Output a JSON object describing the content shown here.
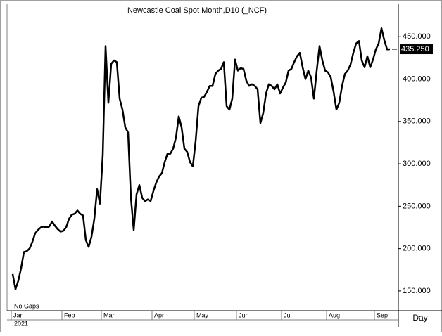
{
  "chart_data": {
    "type": "line",
    "title": "Newcastle Coal Spot Month,D10 (_NCF)",
    "categories": [
      "Jan",
      null,
      null,
      null,
      null,
      null,
      null,
      null,
      null,
      null,
      null,
      null,
      null,
      null,
      null,
      null,
      null,
      null,
      "Feb",
      null,
      null,
      null,
      null,
      null,
      null,
      null,
      null,
      null,
      null,
      null,
      null,
      null,
      "Mar",
      null,
      null,
      null,
      null,
      null,
      null,
      null,
      null,
      null,
      null,
      null,
      null,
      null,
      null,
      null,
      null,
      null,
      "Apr",
      null,
      null,
      null,
      null,
      null,
      null,
      null,
      null,
      null,
      null,
      null,
      null,
      null,
      null,
      "May",
      null,
      null,
      null,
      null,
      null,
      null,
      null,
      null,
      null,
      null,
      null,
      null,
      null,
      null,
      "Jun",
      null,
      null,
      null,
      null,
      null,
      null,
      null,
      null,
      null,
      null,
      null,
      null,
      null,
      null,
      null,
      "Jul",
      null,
      null,
      null,
      null,
      null,
      null,
      null,
      null,
      null,
      null,
      null,
      null,
      null,
      null,
      null,
      "Aug",
      null,
      null,
      null,
      null,
      null,
      null,
      null,
      null,
      null,
      null,
      null,
      null,
      null,
      null,
      null,
      null,
      "Sep",
      null,
      null,
      null,
      null,
      null
    ],
    "values": [
      170,
      152,
      162,
      177,
      196,
      197,
      200,
      208,
      218,
      222,
      225,
      226,
      225,
      226,
      232,
      227,
      223,
      220,
      221,
      225,
      235,
      240,
      241,
      245,
      241,
      239,
      210,
      202,
      214,
      235,
      270,
      253,
      310,
      439,
      372,
      418,
      422,
      420,
      377,
      364,
      343,
      337,
      260,
      222,
      264,
      275,
      260,
      256,
      258,
      256,
      268,
      278,
      285,
      289,
      302,
      312,
      312,
      318,
      331,
      356,
      343,
      318,
      314,
      302,
      297,
      327,
      368,
      378,
      379,
      385,
      392,
      392,
      406,
      410,
      412,
      420,
      368,
      364,
      377,
      423,
      410,
      413,
      412,
      398,
      392,
      394,
      392,
      388,
      348,
      360,
      383,
      394,
      392,
      388,
      394,
      383,
      390,
      396,
      410,
      412,
      420,
      427,
      431,
      414,
      400,
      410,
      402,
      377,
      410,
      439,
      422,
      410,
      408,
      402,
      385,
      364,
      372,
      392,
      406,
      410,
      417,
      431,
      442,
      445,
      422,
      414,
      427,
      414,
      423,
      435,
      442,
      460,
      446,
      435,
      435.25
    ],
    "color": "#000000",
    "ylim": [
      126.7,
      489.2
    ],
    "yticks": [
      {
        "value": 150,
        "label": "150.000"
      },
      {
        "value": 200,
        "label": "200.000"
      },
      {
        "value": 250,
        "label": "250.000"
      },
      {
        "value": 300,
        "label": "300.000"
      },
      {
        "value": 350,
        "label": "350.000"
      },
      {
        "value": 400,
        "label": "400.000"
      },
      {
        "value": 450,
        "label": "450.000"
      }
    ],
    "current_price": {
      "value": 435.25,
      "label": "435.250"
    },
    "gaps_label": "No Gaps",
    "year": "2021",
    "x_label": "Day"
  }
}
